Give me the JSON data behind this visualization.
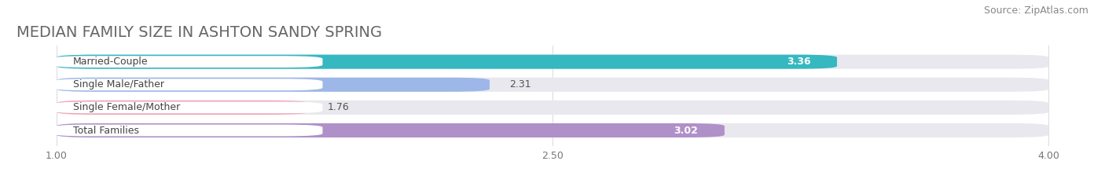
{
  "title": "MEDIAN FAMILY SIZE IN ASHTON SANDY SPRING",
  "source": "Source: ZipAtlas.com",
  "categories": [
    "Married-Couple",
    "Single Male/Father",
    "Single Female/Mother",
    "Total Families"
  ],
  "values": [
    3.36,
    2.31,
    1.76,
    3.02
  ],
  "bar_colors": [
    "#35b8c0",
    "#9db8e8",
    "#f2a0b8",
    "#b090c8"
  ],
  "value_in_bar": [
    true,
    false,
    false,
    true
  ],
  "label_bg_color": "white",
  "xmin": 1.0,
  "xmax": 4.0,
  "xticks": [
    1.0,
    2.5,
    4.0
  ],
  "background_color": "#ffffff",
  "bar_background_color": "#e8e8ee",
  "title_fontsize": 14,
  "source_fontsize": 9,
  "bar_height": 0.62,
  "value_fontsize": 9,
  "label_fontsize": 9
}
